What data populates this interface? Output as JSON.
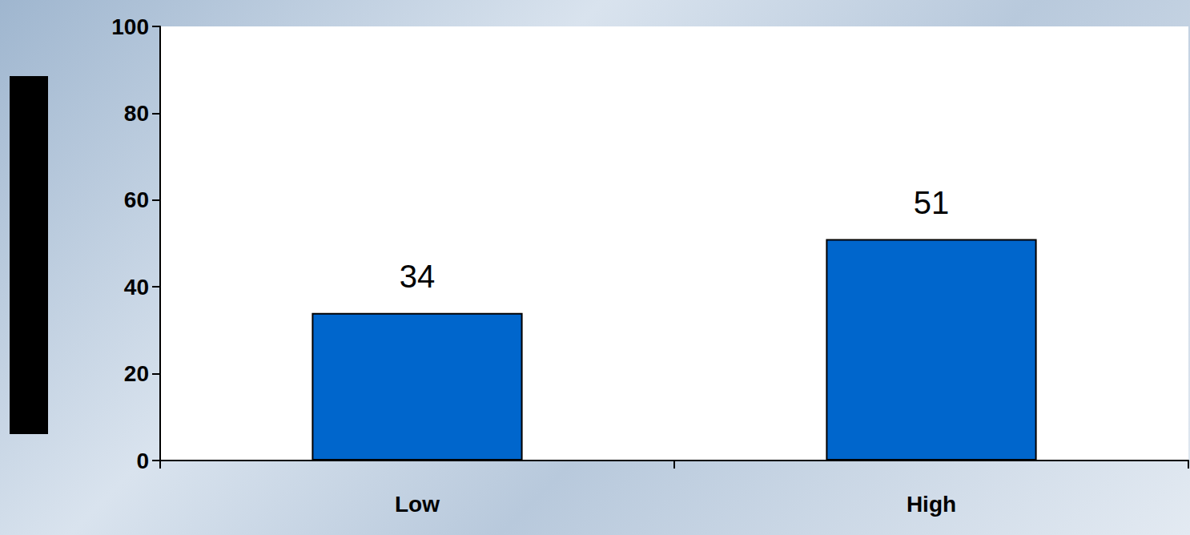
{
  "chart_data": {
    "type": "bar",
    "categories": [
      "Low",
      "High"
    ],
    "values": [
      34,
      51
    ],
    "color": "#0066cc",
    "ylim": [
      0,
      100
    ],
    "yticks": [
      0,
      20,
      40,
      60,
      80,
      100
    ],
    "data_labels": true,
    "grid": false
  }
}
